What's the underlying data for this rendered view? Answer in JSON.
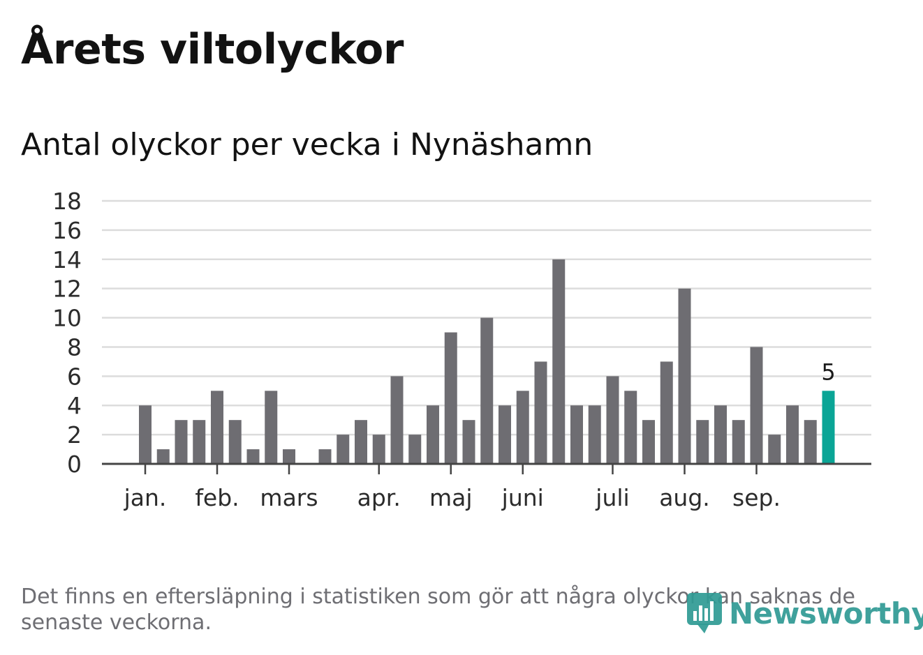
{
  "title": "Årets viltolyckor",
  "subtitle": "Antal olyckor per vecka i Nynäshamn",
  "footnote": "Det finns en eftersläpning i statistiken som gör att några olyckor kan saknas de senaste veckorna.",
  "logo": {
    "text": "Newsworthy",
    "icon": "newsworthy-logo-icon",
    "color": "#2f9a94"
  },
  "chart_data": {
    "type": "bar",
    "title": "",
    "xlabel": "",
    "ylabel": "",
    "ylim": [
      0,
      18
    ],
    "yticks": [
      0,
      2,
      4,
      6,
      8,
      10,
      12,
      14,
      16,
      18
    ],
    "grid": true,
    "legend": "none",
    "values": [
      4,
      1,
      3,
      3,
      5,
      3,
      1,
      5,
      1,
      0,
      1,
      2,
      3,
      2,
      6,
      2,
      4,
      9,
      3,
      10,
      4,
      5,
      7,
      14,
      4,
      4,
      6,
      5,
      3,
      7,
      12,
      3,
      4,
      3,
      8,
      2,
      4,
      3,
      5
    ],
    "month_ticks": [
      {
        "label": "jan.",
        "week": 1
      },
      {
        "label": "feb.",
        "week": 5
      },
      {
        "label": "mars",
        "week": 9
      },
      {
        "label": "apr.",
        "week": 14
      },
      {
        "label": "maj",
        "week": 18
      },
      {
        "label": "juni",
        "week": 22
      },
      {
        "label": "juli",
        "week": 27
      },
      {
        "label": "aug.",
        "week": 31
      },
      {
        "label": "sep.",
        "week": 35
      }
    ],
    "highlight": {
      "index": 38,
      "value_label": "5"
    },
    "colors": {
      "bar": "#6e6d72",
      "highlight": "#0aa596",
      "grid": "#dcdcdc",
      "axis": "#444444"
    }
  }
}
